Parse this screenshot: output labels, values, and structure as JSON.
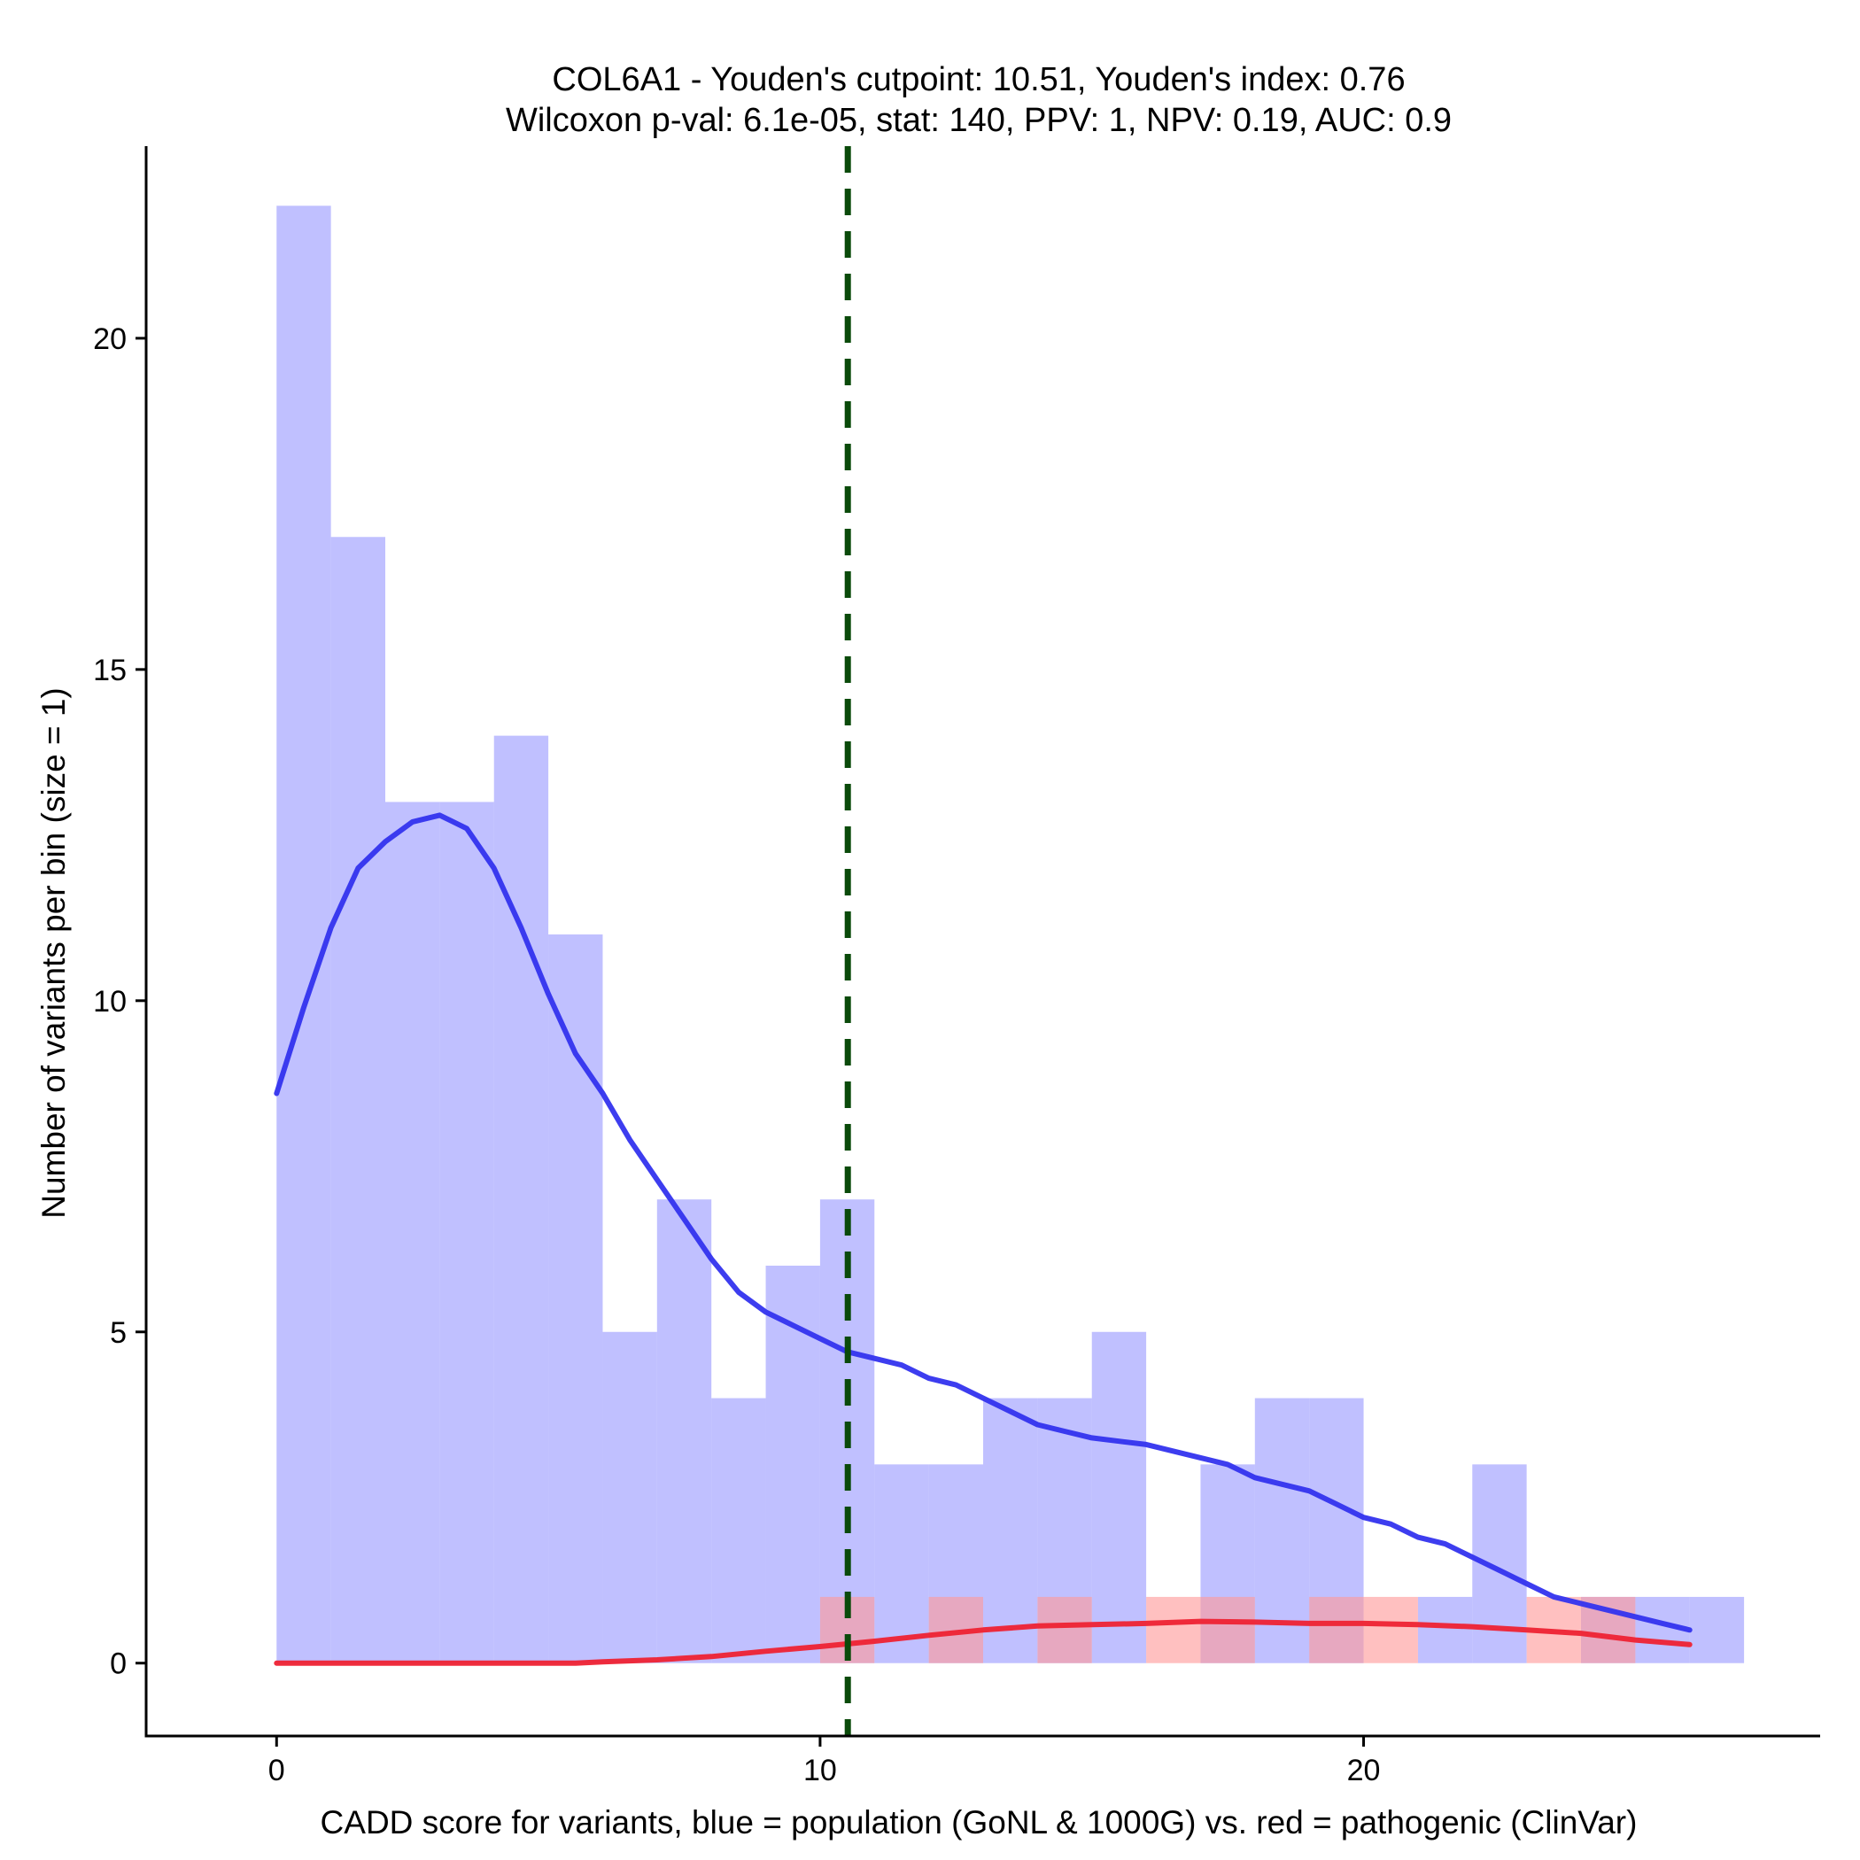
{
  "chart_data": {
    "type": "histogram",
    "title": "COL6A1 - Youden's cutpoint: 10.51, Youden's index: 0.76",
    "subtitle": "Wilcoxon p-val: 6.1e-05, stat: 140, PPV: 1, NPV: 0.19, AUC: 0.9",
    "xlabel": "CADD score for variants, blue = population (GoNL & 1000G) vs. red = pathogenic (ClinVar)",
    "ylabel": "Number of variants per bin (size = 1)",
    "xlim": [
      -2.4,
      28.4
    ],
    "ylim": [
      -1.1,
      22.9
    ],
    "x_ticks": [
      0,
      10,
      20
    ],
    "y_ticks": [
      0,
      5,
      10,
      15,
      20
    ],
    "bin_width": 1,
    "cutpoint": 10.51,
    "colors": {
      "population_fill": "#9999ff",
      "pathogenic_fill": "#ff9999",
      "population_line": "#3333ee",
      "pathogenic_line": "#ee2233",
      "cutpoint_line": "#0a4a0a"
    },
    "series": [
      {
        "name": "population (GoNL & 1000G)",
        "bin_starts": [
          0,
          1,
          2,
          3,
          4,
          5,
          6,
          7,
          8,
          9,
          10,
          11,
          12,
          13,
          14,
          15,
          16,
          17,
          18,
          19,
          20,
          21,
          22,
          23,
          24,
          25,
          26
        ],
        "counts": [
          22,
          17,
          13,
          13,
          14,
          11,
          5,
          7,
          4,
          6,
          7,
          3,
          3,
          4,
          4,
          5,
          0,
          3,
          4,
          4,
          0,
          1,
          3,
          0,
          1,
          1,
          1
        ]
      },
      {
        "name": "pathogenic (ClinVar)",
        "bin_starts": [
          10,
          12,
          14,
          16,
          17,
          19,
          20,
          23,
          24
        ],
        "counts": [
          1,
          1,
          1,
          1,
          1,
          1,
          1,
          1,
          1
        ]
      }
    ],
    "density": [
      {
        "name": "population density",
        "x": [
          0,
          0.5,
          1,
          1.5,
          2,
          2.5,
          3,
          3.5,
          4,
          4.5,
          5,
          5.5,
          6,
          6.5,
          7,
          7.5,
          8,
          8.5,
          9,
          9.5,
          10,
          10.5,
          11,
          11.5,
          12,
          12.5,
          13,
          13.5,
          14,
          14.5,
          15,
          15.5,
          16,
          16.5,
          17,
          17.5,
          18,
          18.5,
          19,
          19.5,
          20,
          20.5,
          21,
          21.5,
          22,
          22.5,
          23,
          23.5,
          24,
          24.5,
          25,
          25.5,
          26
        ],
        "y": [
          8.6,
          9.9,
          11.1,
          12.0,
          12.4,
          12.7,
          12.8,
          12.6,
          12.0,
          11.1,
          10.1,
          9.2,
          8.6,
          7.9,
          7.3,
          6.7,
          6.1,
          5.6,
          5.3,
          5.1,
          4.9,
          4.7,
          4.6,
          4.5,
          4.3,
          4.2,
          4.0,
          3.8,
          3.6,
          3.5,
          3.4,
          3.35,
          3.3,
          3.2,
          3.1,
          3.0,
          2.8,
          2.7,
          2.6,
          2.4,
          2.2,
          2.1,
          1.9,
          1.8,
          1.6,
          1.4,
          1.2,
          1.0,
          0.9,
          0.8,
          0.7,
          0.6,
          0.5
        ]
      },
      {
        "name": "pathogenic density",
        "x": [
          0,
          1,
          2,
          3,
          4,
          5,
          5.5,
          6,
          7,
          8,
          9,
          10,
          11,
          12,
          13,
          14,
          15,
          16,
          17,
          18,
          19,
          20,
          21,
          22,
          23,
          24,
          25,
          26
        ],
        "y": [
          0,
          0,
          0,
          0,
          0,
          0,
          0,
          0.02,
          0.05,
          0.1,
          0.18,
          0.25,
          0.33,
          0.42,
          0.5,
          0.56,
          0.58,
          0.6,
          0.63,
          0.62,
          0.6,
          0.6,
          0.58,
          0.55,
          0.5,
          0.45,
          0.35,
          0.28
        ]
      }
    ]
  }
}
